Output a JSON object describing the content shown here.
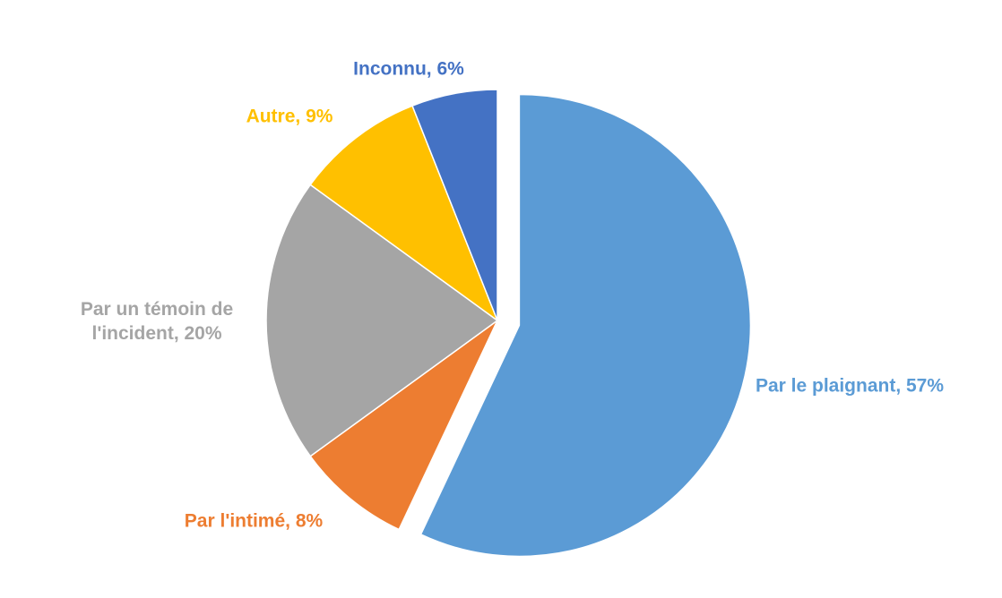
{
  "chart_data": {
    "type": "pie",
    "value_labels": [
      "Par le plaignant, 57%",
      "Par l'intimé, 8%",
      "Par un témoin de l'incident, 20%",
      "Autre, 9%",
      "Inconnu, 6%"
    ],
    "values": [
      57,
      8,
      20,
      9,
      6
    ],
    "colors": [
      "#5b9bd5",
      "#ed7d31",
      "#a5a5a5",
      "#ffc000",
      "#4472c4"
    ]
  }
}
